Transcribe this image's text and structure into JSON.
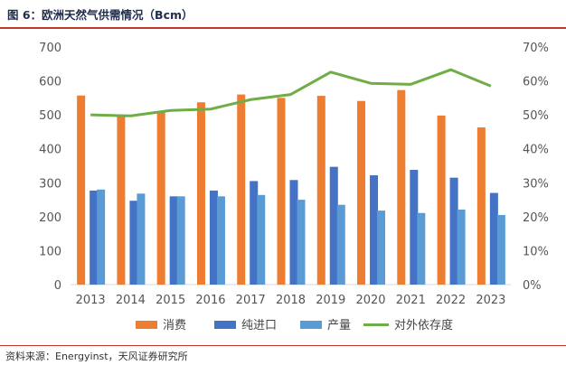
{
  "figure": {
    "title": "图 6：欧洲天然气供需情况（Bcm）",
    "source": "资料来源：Energyinst，天风证券研究所"
  },
  "colors": {
    "consumption": "#ED7D31",
    "net_import": "#4472C4",
    "production": "#5B9BD5",
    "dependency": "#70AD47",
    "rule": "#C0392B"
  },
  "chart_data": {
    "type": "bar",
    "categories": [
      "2013",
      "2014",
      "2015",
      "2016",
      "2017",
      "2018",
      "2019",
      "2020",
      "2021",
      "2022",
      "2023"
    ],
    "series": [
      {
        "name": "消费",
        "type": "bar",
        "axis": "left",
        "color": "#ED7D31",
        "values": [
          557,
          495,
          507,
          537,
          560,
          550,
          556,
          541,
          573,
          498,
          463
        ]
      },
      {
        "name": "纯进口",
        "type": "bar",
        "axis": "left",
        "color": "#4472C4",
        "values": [
          277,
          247,
          260,
          277,
          305,
          308,
          347,
          322,
          338,
          315,
          270
        ]
      },
      {
        "name": "产量",
        "type": "bar",
        "axis": "left",
        "color": "#5B9BD5",
        "values": [
          280,
          268,
          260,
          260,
          264,
          250,
          235,
          218,
          211,
          221,
          205
        ]
      },
      {
        "name": "对外依存度",
        "type": "line",
        "axis": "right",
        "color": "#70AD47",
        "values": [
          0.5,
          0.497,
          0.513,
          0.517,
          0.545,
          0.56,
          0.626,
          0.593,
          0.59,
          0.633,
          0.585
        ]
      }
    ],
    "y_left": {
      "ticks": [
        "0",
        "100",
        "200",
        "300",
        "400",
        "500",
        "600",
        "700"
      ],
      "lim": [
        0,
        700
      ]
    },
    "y_right": {
      "ticks": [
        "0%",
        "10%",
        "20%",
        "30%",
        "40%",
        "50%",
        "60%",
        "70%"
      ],
      "lim": [
        0,
        0.7
      ]
    },
    "grid": false,
    "legend": "bottom",
    "xlabel": "",
    "ylabel": ""
  }
}
